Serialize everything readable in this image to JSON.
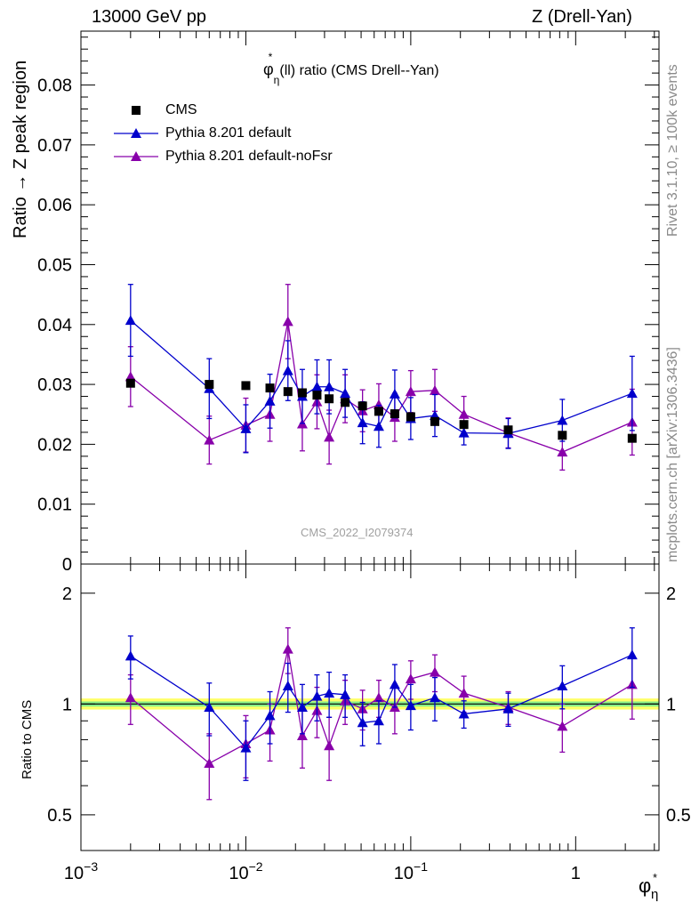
{
  "header": {
    "left": "13000 GeV pp",
    "right": "Z (Drell-Yan)"
  },
  "side_text": {
    "rivet": "Rivet 3.1.10, ≥ 100k events",
    "mcplots": "mcplots.cern.ch [arXiv:1306.3436]"
  },
  "chart_data": {
    "type": "scatter",
    "title_main": "(ll) ratio (CMS Drell--Yan)",
    "title_symbol": "φ",
    "title_star": "*",
    "title_sub": "η",
    "watermark": "CMS_2022_I2079374",
    "ylabel": "Ratio → Z peak region",
    "ratio_ylabel": "Ratio to CMS",
    "xlabel_symbol": "φ",
    "xlabel_star": "*",
    "xlabel_sub": "η",
    "xscale": "log",
    "xlim": [
      0.001,
      3.2
    ],
    "ylim": [
      0,
      0.089
    ],
    "ratio_ylim": [
      0.4,
      2.4
    ],
    "y_ticks": [
      "0",
      "0.01",
      "0.02",
      "0.03",
      "0.04",
      "0.05",
      "0.06",
      "0.07",
      "0.08"
    ],
    "ratio_ticks": [
      "0.5",
      "1",
      "2"
    ],
    "x_tick_labels": [
      {
        "base": "10",
        "exp": "−3"
      },
      {
        "base": "10",
        "exp": "−2"
      },
      {
        "base": "10",
        "exp": "−1"
      },
      {
        "base": "1",
        "exp": ""
      }
    ],
    "legend": [
      {
        "name": "CMS",
        "color": "#000000",
        "marker": "square"
      },
      {
        "name": "Pythia 8.201 default",
        "color": "#0000cc",
        "marker": "triangle"
      },
      {
        "name": "Pythia 8.201 default-noFsr",
        "color": "#8800aa",
        "marker": "triangle"
      }
    ],
    "x": [
      0.002,
      0.006,
      0.01,
      0.014,
      0.018,
      0.022,
      0.027,
      0.032,
      0.04,
      0.051,
      0.064,
      0.08,
      0.1,
      0.14,
      0.21,
      0.39,
      0.83,
      2.2
    ],
    "series": [
      {
        "name": "CMS",
        "values": [
          0.0302,
          0.03,
          0.0298,
          0.0294,
          0.0288,
          0.0286,
          0.0282,
          0.0276,
          0.027,
          0.0264,
          0.0255,
          0.0251,
          0.0246,
          0.0238,
          0.0233,
          0.0224,
          0.0215,
          0.021
        ]
      },
      {
        "name": "Pythia 8.201 default",
        "values": [
          0.0407,
          0.0293,
          0.0226,
          0.0272,
          0.0323,
          0.028,
          0.0296,
          0.0296,
          0.0285,
          0.0236,
          0.023,
          0.0284,
          0.0243,
          0.0248,
          0.0219,
          0.0218,
          0.024,
          0.0285
        ],
        "errors": [
          0.006,
          0.005,
          0.004,
          0.0045,
          0.005,
          0.0045,
          0.0045,
          0.0045,
          0.004,
          0.0035,
          0.0035,
          0.004,
          0.0035,
          0.0035,
          0.002,
          0.0025,
          0.0035,
          0.0062
        ]
      },
      {
        "name": "Pythia 8.201 default-noFsr",
        "values": [
          0.0313,
          0.0207,
          0.0232,
          0.025,
          0.0405,
          0.0234,
          0.0271,
          0.0212,
          0.0276,
          0.0256,
          0.0266,
          0.0245,
          0.0288,
          0.029,
          0.025,
          0.0219,
          0.0187,
          0.0237
        ],
        "errors": [
          0.005,
          0.004,
          0.0045,
          0.0045,
          0.0062,
          0.0045,
          0.0045,
          0.0045,
          0.004,
          0.0035,
          0.0035,
          0.004,
          0.0035,
          0.0035,
          0.003,
          0.0025,
          0.003,
          0.0055
        ]
      }
    ],
    "ratio_series": [
      {
        "name": "Pythia 8.201 default",
        "values": [
          1.35,
          0.98,
          0.76,
          0.93,
          1.12,
          0.98,
          1.05,
          1.07,
          1.06,
          0.89,
          0.9,
          1.13,
          0.99,
          1.04,
          0.94,
          0.97,
          1.12,
          1.36
        ],
        "errors": [
          0.18,
          0.16,
          0.14,
          0.15,
          0.17,
          0.15,
          0.15,
          0.15,
          0.14,
          0.12,
          0.12,
          0.15,
          0.14,
          0.14,
          0.08,
          0.1,
          0.15,
          0.25
        ]
      },
      {
        "name": "Pythia 8.201 default-noFsr",
        "values": [
          1.04,
          0.69,
          0.78,
          0.85,
          1.41,
          0.82,
          0.96,
          0.77,
          1.02,
          0.97,
          1.04,
          0.98,
          1.17,
          1.22,
          1.07,
          0.98,
          0.87,
          1.13
        ],
        "errors": [
          0.16,
          0.14,
          0.15,
          0.15,
          0.2,
          0.15,
          0.15,
          0.15,
          0.14,
          0.12,
          0.12,
          0.15,
          0.14,
          0.14,
          0.12,
          0.1,
          0.13,
          0.22
        ]
      }
    ],
    "band_color": "#ffff66",
    "band_inner_color": "#88ee88"
  }
}
